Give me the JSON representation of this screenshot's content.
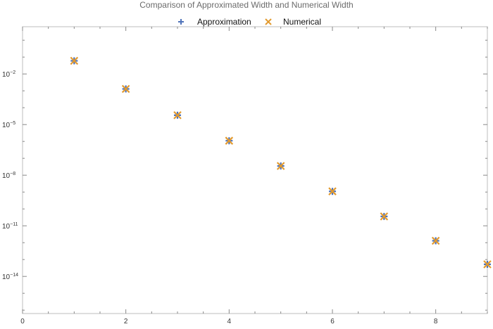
{
  "chart_data": {
    "type": "scatter",
    "title": "Comparison of Approximated Width and Numerical Width",
    "xlabel": "",
    "ylabel": "",
    "yscale": "log",
    "xlim": [
      0,
      9
    ],
    "ylim_exponent": [
      -16.2,
      0.8
    ],
    "legend_position": "top",
    "x_ticks": [
      0,
      2,
      4,
      6,
      8
    ],
    "y_ticks": [
      {
        "exp": -2,
        "label": "10",
        "sup": "−2"
      },
      {
        "exp": -5,
        "label": "10",
        "sup": "−5"
      },
      {
        "exp": -8,
        "label": "10",
        "sup": "−8"
      },
      {
        "exp": -11,
        "label": "10",
        "sup": "−11"
      },
      {
        "exp": -14,
        "label": "10",
        "sup": "−14"
      }
    ],
    "series": [
      {
        "name": "Approximation",
        "marker": "+",
        "color": "#4f73b9",
        "points": [
          {
            "x": 1,
            "y": 0.06
          },
          {
            "x": 2,
            "y": 0.0013
          },
          {
            "x": 3,
            "y": 3.6e-05
          },
          {
            "x": 4,
            "y": 1.1e-06
          },
          {
            "x": 5,
            "y": 3.5e-08
          },
          {
            "x": 6,
            "y": 1.1e-09
          },
          {
            "x": 7,
            "y": 3.6e-11
          },
          {
            "x": 8,
            "y": 1.3e-12
          },
          {
            "x": 9,
            "y": 5.2e-14
          }
        ]
      },
      {
        "name": "Numerical",
        "marker": "x",
        "color": "#e29a2e",
        "points": [
          {
            "x": 1,
            "y": 0.06
          },
          {
            "x": 2,
            "y": 0.0013
          },
          {
            "x": 3,
            "y": 3.6e-05
          },
          {
            "x": 4,
            "y": 1.1e-06
          },
          {
            "x": 5,
            "y": 3.5e-08
          },
          {
            "x": 6,
            "y": 1.1e-09
          },
          {
            "x": 7,
            "y": 3.6e-11
          },
          {
            "x": 8,
            "y": 1.3e-12
          },
          {
            "x": 9,
            "y": 5.2e-14
          }
        ]
      }
    ]
  }
}
